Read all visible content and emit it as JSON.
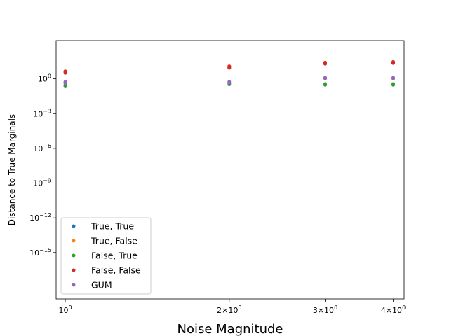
{
  "chart_data": {
    "type": "scatter",
    "title": "",
    "xlabel": "Noise Magnitude",
    "ylabel": "Distance to True Marginals",
    "xscale": "log",
    "yscale": "log",
    "xlim": [
      0.962,
      4.188
    ],
    "ylim": [
      1e-19,
      2000.0
    ],
    "x_ticks": [
      {
        "value": 1,
        "label": "10^0"
      },
      {
        "value": 2,
        "label": "2×10^0"
      },
      {
        "value": 3,
        "label": "3×10^0"
      },
      {
        "value": 4,
        "label": "4×10^0"
      }
    ],
    "y_ticks": [
      {
        "value": 1.0,
        "label": "10^0"
      },
      {
        "value": 0.001,
        "label": "10^-3"
      },
      {
        "value": 1e-06,
        "label": "10^-6"
      },
      {
        "value": 1e-09,
        "label": "10^-9"
      },
      {
        "value": 1e-12,
        "label": "10^-12"
      },
      {
        "value": 1e-15,
        "label": "10^-15"
      }
    ],
    "grid": false,
    "legend_position": "lower-left",
    "series": [
      {
        "name": "True, True",
        "color": "#1f77b4",
        "points": [
          [
            1,
            3.2
          ],
          [
            1,
            4.4
          ],
          [
            2,
            9.0
          ],
          [
            2,
            12.0
          ],
          [
            3,
            20.0
          ],
          [
            3,
            25.0
          ],
          [
            4,
            23.0
          ],
          [
            4,
            28.0
          ]
        ]
      },
      {
        "name": "True, False",
        "color": "#ff7f0e",
        "points": [
          [
            1,
            3.5
          ],
          [
            1,
            4.6
          ],
          [
            2,
            9.5
          ],
          [
            2,
            12.5
          ],
          [
            3,
            20.5
          ],
          [
            3,
            25.5
          ],
          [
            4,
            23.5
          ],
          [
            4,
            28.5
          ]
        ]
      },
      {
        "name": "False, True",
        "color": "#2ca02c",
        "points": [
          [
            1,
            0.22
          ],
          [
            1,
            0.26
          ],
          [
            2,
            0.33
          ],
          [
            2,
            0.4
          ],
          [
            3,
            0.3
          ],
          [
            3,
            0.36
          ],
          [
            4,
            0.3
          ],
          [
            4,
            0.36
          ]
        ]
      },
      {
        "name": "False, False",
        "color": "#d62728",
        "points": [
          [
            1,
            3.3
          ],
          [
            1,
            4.3
          ],
          [
            2,
            8.8
          ],
          [
            2,
            11.5
          ],
          [
            3,
            20.0
          ],
          [
            3,
            25.0
          ],
          [
            4,
            23.0
          ],
          [
            4,
            28.0
          ]
        ]
      },
      {
        "name": "GUM",
        "color": "#9467bd",
        "points": [
          [
            1,
            0.55
          ],
          [
            1,
            0.4
          ],
          [
            2,
            0.55
          ],
          [
            2,
            0.45
          ],
          [
            3,
            1.25
          ],
          [
            3,
            1.05
          ],
          [
            4,
            1.25
          ],
          [
            4,
            1.05
          ]
        ]
      }
    ]
  }
}
